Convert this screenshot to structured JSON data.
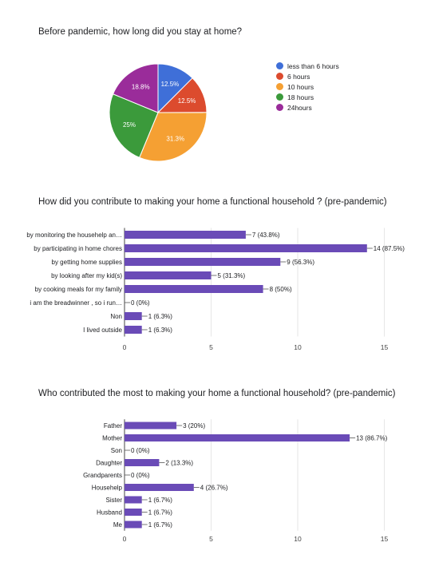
{
  "charts": {
    "pie": {
      "title": "Before pandemic, how long did you stay at home?"
    },
    "bar1": {
      "title": "How did you contribute to making your home a functional household ? (pre-pandemic)"
    },
    "bar2": {
      "title": "Who contributed the most to making your home a functional household? (pre-pandemic)"
    }
  },
  "chart_data": [
    {
      "type": "pie",
      "title": "Before pandemic, how long did you stay at home?",
      "legend_position": "right",
      "labels": [
        "less than 6 hours",
        "6 hours",
        "10 hours",
        "18 hours",
        "24hours"
      ],
      "values": [
        12.5,
        12.5,
        31.3,
        25,
        18.8
      ],
      "slice_labels": [
        "12.5%",
        "12.5%",
        "31.3%",
        "25%",
        "18.8%"
      ],
      "colors": [
        "#3f6fd8",
        "#dc4b2e",
        "#f5a033",
        "#3b9a3b",
        "#9a2c9a"
      ]
    },
    {
      "type": "bar",
      "orientation": "horizontal",
      "title": "How did you contribute to making your home a functional household ? (pre-pandemic)",
      "categories": [
        "by monitoring the househelp an…",
        "by participating in home chores",
        "by getting home supplies",
        "by looking after my kid(s)",
        "by cooking meals for my family",
        "i am the breadwinner , so i run…",
        "Non",
        "I lived outside"
      ],
      "values": [
        7,
        14,
        9,
        5,
        8,
        0,
        1,
        1
      ],
      "data_labels": [
        "7 (43.8%)",
        "14 (87.5%)",
        "9 (56.3%)",
        "5 (31.3%)",
        "8 (50%)",
        "0 (0%)",
        "1 (6.3%)",
        "1 (6.3%)"
      ],
      "xlim": [
        0,
        15
      ],
      "ticks": [
        "0",
        "5",
        "10",
        "15"
      ],
      "color": "#6a4bb7"
    },
    {
      "type": "bar",
      "orientation": "horizontal",
      "title": "Who contributed the most to making your home a functional household? (pre-pandemic)",
      "categories": [
        "Father",
        "Mother",
        "Son",
        "Daughter",
        "Grandparents",
        "Househelp",
        "Sister",
        "Husband",
        "Me"
      ],
      "values": [
        3,
        13,
        0,
        2,
        0,
        4,
        1,
        1,
        1
      ],
      "data_labels": [
        "3 (20%)",
        "13 (86.7%)",
        "0 (0%)",
        "2 (13.3%)",
        "0 (0%)",
        "4 (26.7%)",
        "1 (6.7%)",
        "1 (6.7%)",
        "1 (6.7%)"
      ],
      "xlim": [
        0,
        15
      ],
      "ticks": [
        "0",
        "5",
        "10",
        "15"
      ],
      "color": "#6a4bb7"
    }
  ]
}
